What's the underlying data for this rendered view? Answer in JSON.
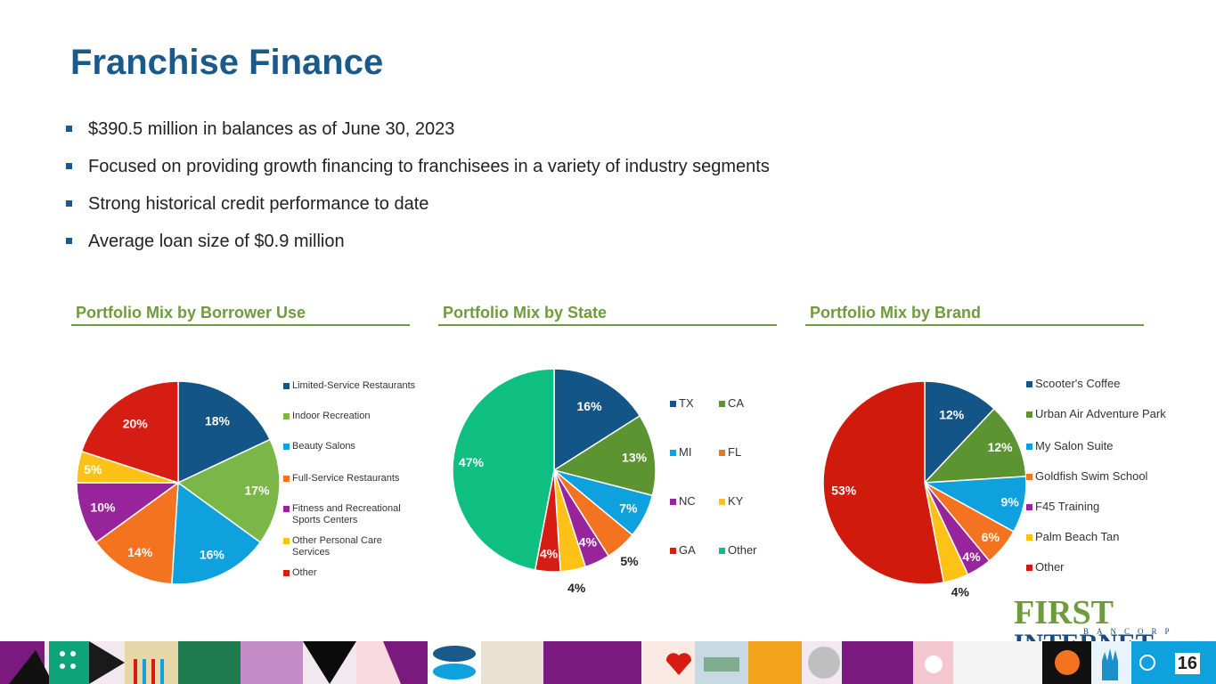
{
  "title": "Franchise Finance",
  "bullets": [
    "$390.5 million in balances as of June 30, 2023",
    "Focused on providing growth financing to franchisees in a variety of industry segments",
    "Strong historical credit performance to date",
    "Average loan size of $0.9 million"
  ],
  "logo": {
    "name_first": "FIRST",
    "name_second": "INTERNET",
    "sub": "BANCORP"
  },
  "page_number": "16",
  "chart_data": [
    {
      "type": "pie",
      "title": "Portfolio Mix by Borrower Use",
      "categories": [
        "Limited-Service Restaurants",
        "Indoor Recreation",
        "Beauty Salons",
        "Full-Service Restaurants",
        "Fitness and Recreational Sports Centers",
        "Other Personal Care Services",
        "Other"
      ],
      "values": [
        18,
        17,
        16,
        14,
        10,
        5,
        20
      ],
      "labels": [
        "18%",
        "17%",
        "16%",
        "14%",
        "10%",
        "5%",
        "20%"
      ],
      "colors": [
        "#135587",
        "#7ab648",
        "#0ea1de",
        "#f47321",
        "#97249a",
        "#fdc117",
        "#d61d13"
      ],
      "legend_position": "right"
    },
    {
      "type": "pie",
      "title": "Portfolio Mix by State",
      "categories": [
        "TX",
        "CA",
        "MI",
        "FL",
        "NC",
        "KY",
        "GA",
        "Other"
      ],
      "values": [
        16,
        13,
        7,
        5,
        4,
        4,
        4,
        47
      ],
      "labels": [
        "16%",
        "13%",
        "7%",
        "5%",
        "4%",
        "4%",
        "4%",
        "47%"
      ],
      "colors": [
        "#135587",
        "#5b9431",
        "#0ea1de",
        "#f47321",
        "#97249a",
        "#fdc117",
        "#d61d13",
        "#0fbf82"
      ],
      "legend_position": "right"
    },
    {
      "type": "pie",
      "title": "Portfolio Mix by Brand",
      "categories": [
        "Scooter's Coffee",
        "Urban Air Adventure Park",
        "My Salon Suite",
        "Goldfish Swim School",
        "F45 Training",
        "Palm Beach Tan",
        "Other"
      ],
      "values": [
        12,
        12,
        9,
        6,
        4,
        4,
        53
      ],
      "labels": [
        "12%",
        "12%",
        "9%",
        "6%",
        "4%",
        "4%",
        "53%"
      ],
      "colors": [
        "#135587",
        "#5b9431",
        "#0ea1de",
        "#f47321",
        "#97249a",
        "#fdc117",
        "#d01a0c"
      ],
      "legend_position": "right"
    }
  ]
}
